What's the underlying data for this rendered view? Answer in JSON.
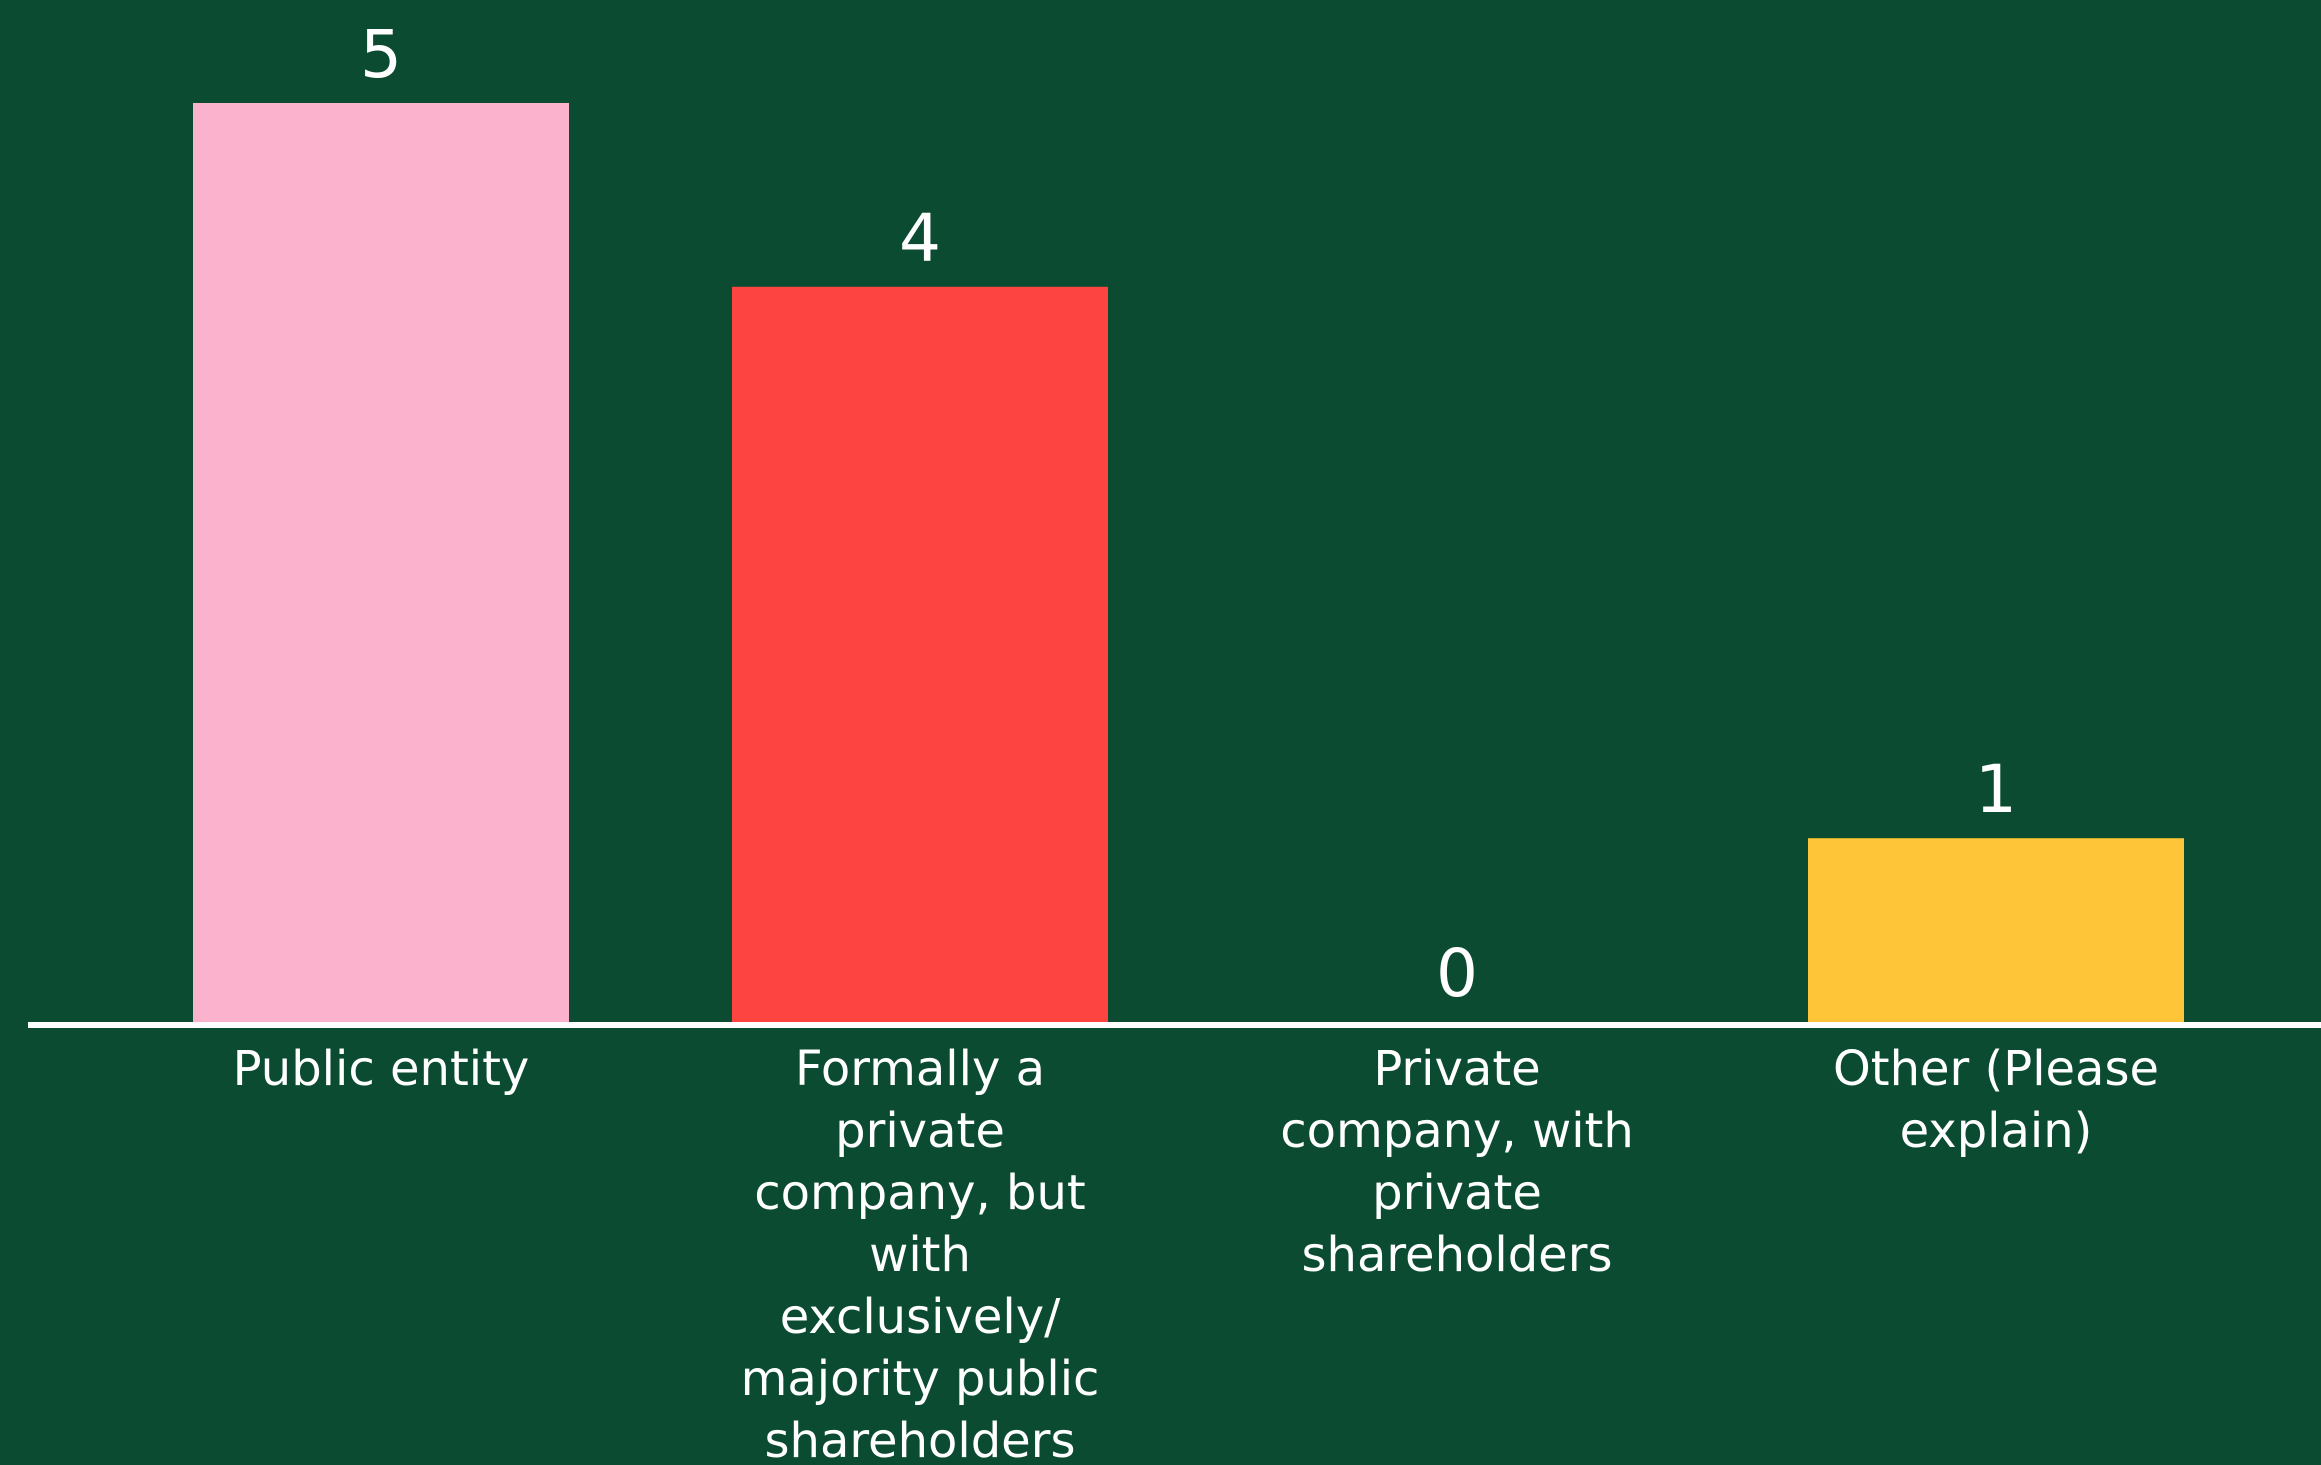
{
  "chart_data": {
    "type": "bar",
    "categories": [
      "Public entity",
      "Formally a private company, but with exclusively/ majority public shareholders",
      "Private company, with private shareholders",
      "Other (Please explain)"
    ],
    "category_lines": [
      [
        "Public entity"
      ],
      [
        "Formally a",
        "private",
        "company, but",
        "with",
        "exclusively/",
        "majority public",
        "shareholders"
      ],
      [
        "Private",
        "company, with",
        "private",
        "shareholders"
      ],
      [
        "Other (Please",
        "explain)"
      ]
    ],
    "values": [
      5,
      4,
      0,
      1
    ],
    "value_labels": [
      "5",
      "4",
      "0",
      "1"
    ],
    "colors": [
      "#fbb3cd",
      "#fd4440",
      "#ffffff",
      "#fdc537"
    ],
    "background": "#0b4b31",
    "axis_color": "#ffffff",
    "ylim": [
      0,
      5
    ],
    "grid": false,
    "title": "",
    "xlabel": "",
    "ylabel": ""
  }
}
